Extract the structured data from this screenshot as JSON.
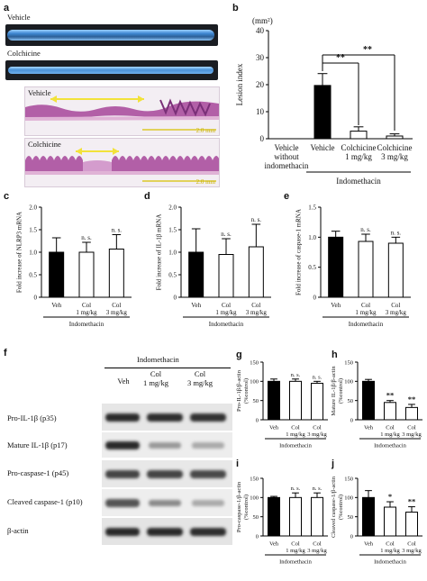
{
  "panels": {
    "a": {
      "letter": "a",
      "top_label": "Vehicle",
      "mid_label": "Colchicine",
      "hist_top": "Vehicle",
      "hist_bottom": "Colchicine",
      "scalebar": "2.0 mm"
    },
    "b": {
      "letter": "b"
    },
    "c": {
      "letter": "c"
    },
    "d": {
      "letter": "d"
    },
    "e": {
      "letter": "e"
    },
    "f": {
      "letter": "f",
      "group": "Indomethacin",
      "lanes": [
        "Veh",
        "Col\n1 mg/kg",
        "Col\n3 mg/kg"
      ],
      "rows": [
        "Pro-IL-1β (p35)",
        "Mature IL-1β (p17)",
        "Pro-caspase-1 (p45)",
        "Cleaved caspase-1 (p10)",
        "β-actin"
      ]
    },
    "g": {
      "letter": "g"
    },
    "h": {
      "letter": "h"
    },
    "i": {
      "letter": "i"
    },
    "j": {
      "letter": "j"
    }
  },
  "chart_data": [
    {
      "id": "b",
      "type": "bar",
      "ylabel": "Lesion index",
      "unit": "(mm²)",
      "ylim": [
        0,
        40
      ],
      "yticks": [
        0,
        10,
        20,
        30,
        40
      ],
      "categories": [
        "Vehicle\nwithout\nindomethacin",
        "Vehicle",
        "Colchicine\n1 mg/kg",
        "Colchicine\n3 mg/kg"
      ],
      "values": [
        0,
        19.7,
        2.8,
        1.0
      ],
      "errors": [
        0,
        4.4,
        1.6,
        0.8
      ],
      "fills": [
        "#000000",
        "#000000",
        "#ffffff",
        "#ffffff"
      ],
      "annotations": [
        "**",
        "**"
      ],
      "group_label": "Indomethacin",
      "group_span": [
        1,
        3
      ]
    },
    {
      "id": "c",
      "type": "bar",
      "ylabel": "Fold increase of NLRP3 mRNA",
      "ylim": [
        0,
        2
      ],
      "yticks": [
        "0",
        "0.5",
        "1.0",
        "1.5",
        "2.0"
      ],
      "categories": [
        "Veh",
        "Col\n1 mg/kg",
        "Col\n3 mg/kg"
      ],
      "values": [
        1.0,
        1.0,
        1.07
      ],
      "errors": [
        0.32,
        0.22,
        0.32
      ],
      "fills": [
        "#000000",
        "#ffffff",
        "#ffffff"
      ],
      "annotations": [
        "",
        "n. s.",
        "n. s."
      ],
      "group_label": "Indomethacin"
    },
    {
      "id": "d",
      "type": "bar",
      "ylabel": "Fold increase of IL-1β mRNA",
      "ylim": [
        0,
        2
      ],
      "yticks": [
        "0",
        "0.5",
        "1.0",
        "1.5",
        "2.0"
      ],
      "categories": [
        "Veh",
        "Col\n1 mg/kg",
        "Col\n3 mg/kg"
      ],
      "values": [
        1.0,
        0.95,
        1.12
      ],
      "errors": [
        0.52,
        0.35,
        0.5
      ],
      "fills": [
        "#000000",
        "#ffffff",
        "#ffffff"
      ],
      "annotations": [
        "",
        "n. s.",
        "n. s."
      ],
      "group_label": "Indomethacin"
    },
    {
      "id": "e",
      "type": "bar",
      "ylabel": "Fold increase of caspase-1 mRNA",
      "ylim": [
        0,
        1.5
      ],
      "yticks": [
        "0",
        "0.5",
        "1.0",
        "1.5"
      ],
      "categories": [
        "Veh",
        "Col\n1 mg/kg",
        "Col\n3 mg/kg"
      ],
      "values": [
        1.0,
        0.93,
        0.9
      ],
      "errors": [
        0.1,
        0.12,
        0.1
      ],
      "fills": [
        "#000000",
        "#ffffff",
        "#ffffff"
      ],
      "annotations": [
        "",
        "n. s.",
        "n. s."
      ],
      "group_label": "Indomethacin"
    },
    {
      "id": "g",
      "type": "bar",
      "ylabel": "Pro-IL-1β/β-actin\n(%control)",
      "ylim": [
        0,
        150
      ],
      "yticks": [
        "0",
        "50",
        "100",
        "150"
      ],
      "categories": [
        "Veh",
        "Col\n1 mg/kg",
        "Col\n3 mg/kg"
      ],
      "values": [
        100,
        100,
        95
      ],
      "errors": [
        6,
        6,
        5
      ],
      "fills": [
        "#000000",
        "#ffffff",
        "#ffffff"
      ],
      "annotations": [
        "",
        "n. s.",
        "n. s."
      ],
      "group_label": "Indomethacin"
    },
    {
      "id": "h",
      "type": "bar",
      "ylabel": "Mature IL-1β/β-actin\n(%control)",
      "ylim": [
        0,
        150
      ],
      "yticks": [
        "0",
        "50",
        "100",
        "150"
      ],
      "categories": [
        "Veh",
        "Col\n1 mg/kg",
        "Col\n3 mg/kg"
      ],
      "values": [
        100,
        45,
        32
      ],
      "errors": [
        5,
        5,
        8
      ],
      "fills": [
        "#000000",
        "#ffffff",
        "#ffffff"
      ],
      "annotations": [
        "",
        "**",
        "**"
      ],
      "group_label": "Indomethacin"
    },
    {
      "id": "i",
      "type": "bar",
      "ylabel": "Pro-caspase-1/β-actin\n(%control)",
      "ylim": [
        0,
        150
      ],
      "yticks": [
        "0",
        "50",
        "100",
        "150"
      ],
      "categories": [
        "Veh",
        "Col\n1 mg/kg",
        "Col\n3 mg/kg"
      ],
      "values": [
        100,
        100,
        100
      ],
      "errors": [
        3,
        12,
        12
      ],
      "fills": [
        "#000000",
        "#ffffff",
        "#ffffff"
      ],
      "annotations": [
        "",
        "n. s.",
        "n. s."
      ],
      "group_label": "Indomethacin"
    },
    {
      "id": "j",
      "type": "bar",
      "ylabel": "Cleaved caspase-1/β-actin\n(%control)",
      "ylim": [
        0,
        150
      ],
      "yticks": [
        "0",
        "50",
        "100",
        "150"
      ],
      "categories": [
        "Veh",
        "Col\n1 mg/kg",
        "Col\n3 mg/kg"
      ],
      "values": [
        100,
        75,
        62
      ],
      "errors": [
        18,
        14,
        14
      ],
      "fills": [
        "#000000",
        "#ffffff",
        "#ffffff"
      ],
      "annotations": [
        "",
        "*",
        "**"
      ],
      "group_label": "Indomethacin"
    }
  ]
}
